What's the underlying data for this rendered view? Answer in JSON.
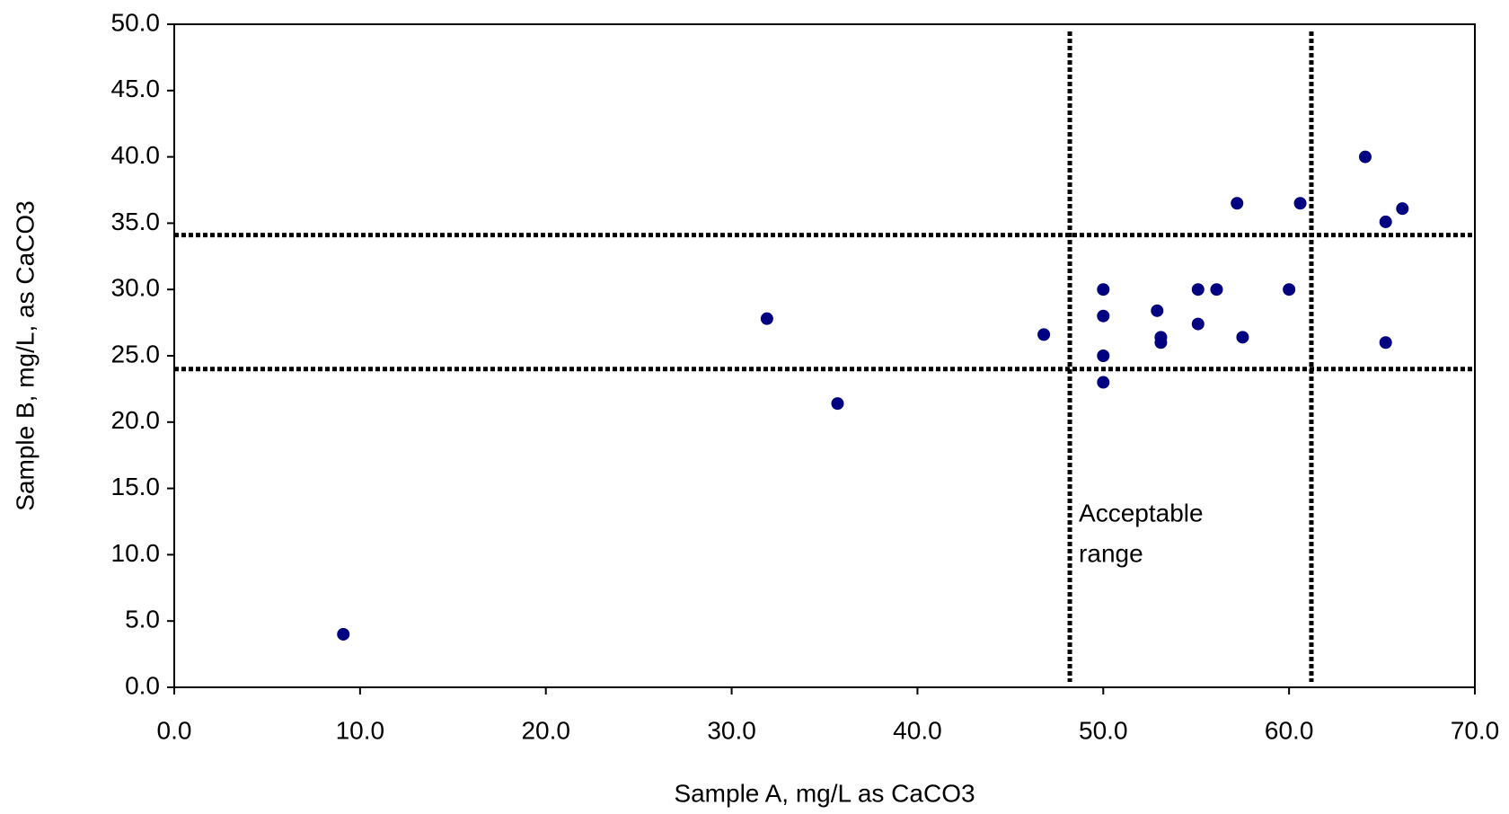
{
  "chart_data": {
    "type": "scatter",
    "xlabel": "Sample A, mg/L as CaCO3",
    "ylabel": "Sample B, mg/L, as CaCO3",
    "annotation": [
      "Acceptable",
      "range"
    ],
    "series": [
      {
        "color": "#000080",
        "x": [
          9.1,
          31.9,
          35.7,
          46.8,
          50.0,
          50.0,
          50.0,
          50.0,
          52.9,
          53.1,
          53.1,
          55.1,
          55.1,
          56.1,
          57.2,
          57.5,
          60.0,
          60.6,
          64.1,
          65.2,
          65.2,
          66.1
        ],
        "values": [
          4.0,
          27.8,
          21.4,
          26.6,
          30.0,
          28.0,
          25.0,
          23.0,
          28.4,
          26.4,
          26.0,
          30.0,
          27.4,
          30.0,
          36.5,
          26.4,
          30.0,
          36.5,
          40.0,
          35.1,
          26.0,
          36.1
        ]
      }
    ],
    "reference_lines": {
      "x": [
        48.2,
        61.2
      ],
      "y": [
        34.1,
        24.0
      ]
    },
    "xlim": [
      0,
      70
    ],
    "xticks": [
      {
        "value": 0,
        "label": "0.0"
      },
      {
        "value": 10,
        "label": "10.0"
      },
      {
        "value": 20,
        "label": "20.0"
      },
      {
        "value": 30,
        "label": "30.0"
      },
      {
        "value": 40,
        "label": "40.0"
      },
      {
        "value": 50,
        "label": "50.0"
      },
      {
        "value": 60,
        "label": "60.0"
      },
      {
        "value": 70,
        "label": "70.0"
      }
    ],
    "ylim": [
      0,
      50
    ],
    "yticks": [
      {
        "value": 0,
        "label": "0.0"
      },
      {
        "value": 5,
        "label": "5.0"
      },
      {
        "value": 10,
        "label": "10.0"
      },
      {
        "value": 15,
        "label": "15.0"
      },
      {
        "value": 20,
        "label": "20.0"
      },
      {
        "value": 25,
        "label": "25.0"
      },
      {
        "value": 30,
        "label": "30.0"
      },
      {
        "value": 35,
        "label": "35.0"
      },
      {
        "value": 40,
        "label": "40.0"
      },
      {
        "value": 45,
        "label": "45.0"
      },
      {
        "value": 50,
        "label": "50.0"
      }
    ],
    "grid": false
  }
}
